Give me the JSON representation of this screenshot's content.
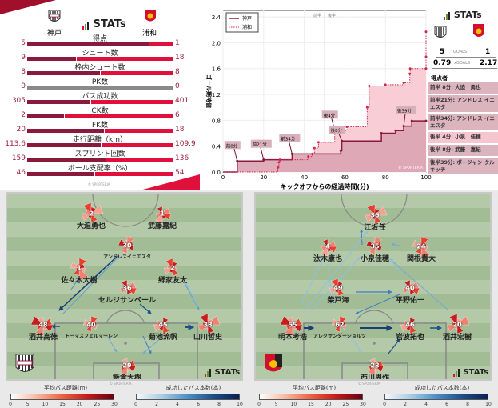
{
  "brand": "STATs",
  "copyright": "© SPORTERIA",
  "teams": {
    "home": "神戸",
    "away": "浦和"
  },
  "colors": {
    "home": "#8a1a3c",
    "away": "#e0103c",
    "pass_blue": "#1b4f8c"
  },
  "stats": [
    {
      "label": "得点",
      "home": "5",
      "away": "1",
      "home_share": 0.833
    },
    {
      "label": "シュート数",
      "home": "9",
      "away": "18",
      "home_share": 0.333
    },
    {
      "label": "枠内シュート数",
      "home": "8",
      "away": "8",
      "home_share": 0.5
    },
    {
      "label": "PK数",
      "home": "0",
      "away": "0",
      "home_share": null
    },
    {
      "label": "パス成功数",
      "home": "305",
      "away": "401",
      "home_share": 0.432
    },
    {
      "label": "CK数",
      "home": "2",
      "away": "6",
      "home_share": 0.25
    },
    {
      "label": "FK数",
      "home": "20",
      "away": "18",
      "home_share": 0.526
    },
    {
      "label": "走行距離（km）",
      "home": "113.6",
      "away": "109.9",
      "home_share": 0.508
    },
    {
      "label": "スプリント回数",
      "home": "159",
      "away": "136",
      "home_share": 0.539
    },
    {
      "label": "ボール支配率（%）",
      "home": "46",
      "away": "54",
      "home_share": 0.46
    }
  ],
  "summary": {
    "goals_label": "GOALS",
    "home_goals": "5",
    "away_goals": "1",
    "xg_label": "xGOALS",
    "home_xg": "0.79",
    "away_xg": "2.17",
    "scorers_title": "得点者",
    "scorers": [
      "前半  8分: 大迫　勇也",
      "前半21分: アンドレス イニエスタ",
      "前半34分: アンドレス イニエスタ",
      "後半  4分: 小泉　佳穂",
      "後半  8分: 武藤　嘉紀",
      "後半39分: ボージャン クルキッチ"
    ]
  },
  "chart_data": {
    "type": "line",
    "xlabel": "キックオフからの経過時間(分)",
    "ylabel": "ゴール期待値",
    "xlim": [
      0,
      100
    ],
    "ylim": [
      0,
      2.5
    ],
    "xticks": [
      0,
      20,
      40,
      60,
      80,
      100
    ],
    "yticks": [
      0.0,
      0.4,
      0.8,
      1.2,
      1.6,
      2.0,
      2.4
    ],
    "half_labels": [
      "前半",
      "後半"
    ],
    "series": [
      {
        "name": "神戸",
        "style": "solid",
        "steps": [
          [
            0,
            0
          ],
          [
            7,
            0.17
          ],
          [
            20,
            0.19
          ],
          [
            34,
            0.28
          ],
          [
            58,
            0.33
          ],
          [
            58.5,
            0.48
          ],
          [
            78,
            0.6
          ],
          [
            85,
            0.64
          ],
          [
            89,
            0.71
          ],
          [
            93,
            0.79
          ],
          [
            100,
            0.79
          ]
        ]
      },
      {
        "name": "浦和",
        "style": "dotted",
        "steps": [
          [
            0,
            0
          ],
          [
            27,
            0.07
          ],
          [
            27.5,
            0.15
          ],
          [
            28,
            0.19
          ],
          [
            42,
            0.24
          ],
          [
            44,
            0.28
          ],
          [
            45,
            0.37
          ],
          [
            47,
            0.46
          ],
          [
            55,
            0.64
          ],
          [
            61,
            0.7
          ],
          [
            71,
            1.0
          ],
          [
            72,
            1.33
          ],
          [
            80,
            1.35
          ],
          [
            89,
            1.38
          ],
          [
            92,
            1.52
          ],
          [
            92.2,
            1.6
          ],
          [
            100,
            1.6
          ],
          [
            100,
            1.78
          ],
          [
            100,
            2.17
          ]
        ]
      }
    ],
    "annotations": [
      {
        "text": "前8分",
        "x": 7,
        "y": 0.17
      },
      {
        "text": "前21分",
        "x": 20,
        "y": 0.19
      },
      {
        "text": "前34分",
        "x": 34,
        "y": 0.28
      },
      {
        "text": "後4分",
        "x": 55,
        "y": 0.64
      },
      {
        "text": "後8分",
        "x": 58.5,
        "y": 0.48
      },
      {
        "text": "後39分",
        "x": 89,
        "y": 0.71
      }
    ]
  },
  "pitch_home": {
    "players": [
      {
        "num": "2",
        "name": "大迫勇也"
      },
      {
        "num": "1",
        "name": "武藤嘉紀"
      },
      {
        "num": "30",
        "name": "アンドレスイニエスタ"
      },
      {
        "num": "1",
        "name": "佐々木大樹"
      },
      {
        "num": "2",
        "name": "郷家友太"
      },
      {
        "num": "36",
        "name": "セルジサンペール"
      },
      {
        "num": "48",
        "name": "酒井高徳"
      },
      {
        "num": "40",
        "name": "トーマスフェルマーレン"
      },
      {
        "num": "45",
        "name": "菊池流帆"
      },
      {
        "num": "38",
        "name": "山川哲史"
      },
      {
        "num": "29",
        "name": "飯倉大樹"
      }
    ]
  },
  "pitch_away": {
    "players": [
      {
        "num": "36",
        "name": "江坂任"
      },
      {
        "num": "4",
        "name": "汰木康也"
      },
      {
        "num": "35",
        "name": "小泉佳穂"
      },
      {
        "num": "24",
        "name": "関根貴大"
      },
      {
        "num": "49",
        "name": "柴戸海"
      },
      {
        "num": "40",
        "name": "平野佑一"
      },
      {
        "num": "55",
        "name": "明本考浩"
      },
      {
        "num": "62",
        "name": "アレクサンダーショルツ"
      },
      {
        "num": "46",
        "name": "岩波拓也"
      },
      {
        "num": "20",
        "name": "酒井宏樹"
      },
      {
        "num": "28",
        "name": "西川周作"
      }
    ]
  },
  "legend": {
    "distance_title": "平均パス距離(m)",
    "distance_ticks": [
      "0",
      "5",
      "10",
      "15",
      "20",
      "25",
      "30"
    ],
    "count_title": "成功したパス本数(本)",
    "count_ticks": [
      "0",
      "2",
      "4",
      "6",
      "8",
      "10"
    ]
  }
}
